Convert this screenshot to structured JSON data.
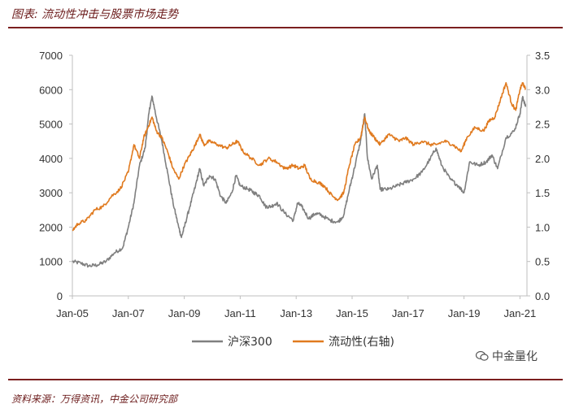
{
  "header": {
    "title": "图表: 流动性冲击与股票市场走势"
  },
  "footer": {
    "source": "资料来源：万得资讯，中金公司研究部"
  },
  "watermark": {
    "text": "中金量化",
    "icon": "wechat-icon"
  },
  "colors": {
    "series_gray": "#7f7f7f",
    "series_orange": "#e07a1f",
    "rule": "#7b1f1f"
  },
  "chart_data": {
    "type": "line",
    "title": "",
    "xlabel": "",
    "ylabel": "",
    "y2label": "",
    "x_ticks": [
      "Jan-05",
      "Jan-07",
      "Jan-09",
      "Jan-11",
      "Jan-13",
      "Jan-15",
      "Jan-17",
      "Jan-19",
      "Jan-21"
    ],
    "x_range": [
      2005.0,
      2021.25
    ],
    "ylim": [
      0,
      7000
    ],
    "y_ticks": [
      "0",
      "1000",
      "2000",
      "3000",
      "4000",
      "5000",
      "6000",
      "7000"
    ],
    "y2lim": [
      0,
      3.5
    ],
    "y2_ticks": [
      "0.0",
      "0.5",
      "1.0",
      "1.5",
      "2.0",
      "2.5",
      "3.0",
      "3.5"
    ],
    "legend": {
      "position": "bottom-center"
    },
    "series": [
      {
        "name": "沪深300",
        "axis": "left",
        "color": "#7f7f7f",
        "points": [
          [
            2005.0,
            1000
          ],
          [
            2005.3,
            950
          ],
          [
            2005.6,
            870
          ],
          [
            2005.9,
            900
          ],
          [
            2006.2,
            1000
          ],
          [
            2006.5,
            1250
          ],
          [
            2006.8,
            1400
          ],
          [
            2007.0,
            2000
          ],
          [
            2007.2,
            2700
          ],
          [
            2007.4,
            3800
          ],
          [
            2007.6,
            4300
          ],
          [
            2007.75,
            5400
          ],
          [
            2007.85,
            5800
          ],
          [
            2008.0,
            5200
          ],
          [
            2008.2,
            4500
          ],
          [
            2008.4,
            3600
          ],
          [
            2008.6,
            2700
          ],
          [
            2008.8,
            2000
          ],
          [
            2008.9,
            1700
          ],
          [
            2009.0,
            2000
          ],
          [
            2009.2,
            2600
          ],
          [
            2009.4,
            3200
          ],
          [
            2009.55,
            3700
          ],
          [
            2009.7,
            3200
          ],
          [
            2009.9,
            3500
          ],
          [
            2010.1,
            3400
          ],
          [
            2010.3,
            2900
          ],
          [
            2010.5,
            2700
          ],
          [
            2010.7,
            3000
          ],
          [
            2010.85,
            3500
          ],
          [
            2011.0,
            3200
          ],
          [
            2011.3,
            3100
          ],
          [
            2011.5,
            3000
          ],
          [
            2011.7,
            2900
          ],
          [
            2011.9,
            2600
          ],
          [
            2012.1,
            2600
          ],
          [
            2012.3,
            2700
          ],
          [
            2012.6,
            2400
          ],
          [
            2012.9,
            2200
          ],
          [
            2013.05,
            2700
          ],
          [
            2013.2,
            2600
          ],
          [
            2013.45,
            2250
          ],
          [
            2013.7,
            2400
          ],
          [
            2013.9,
            2350
          ],
          [
            2014.2,
            2200
          ],
          [
            2014.5,
            2150
          ],
          [
            2014.7,
            2350
          ],
          [
            2014.9,
            3100
          ],
          [
            2015.05,
            3600
          ],
          [
            2015.3,
            4500
          ],
          [
            2015.45,
            5300
          ],
          [
            2015.55,
            4000
          ],
          [
            2015.7,
            3400
          ],
          [
            2015.9,
            3800
          ],
          [
            2016.0,
            3100
          ],
          [
            2016.3,
            3100
          ],
          [
            2016.6,
            3200
          ],
          [
            2016.9,
            3300
          ],
          [
            2017.2,
            3400
          ],
          [
            2017.5,
            3600
          ],
          [
            2017.8,
            4000
          ],
          [
            2018.0,
            4300
          ],
          [
            2018.2,
            3800
          ],
          [
            2018.5,
            3400
          ],
          [
            2018.8,
            3200
          ],
          [
            2019.0,
            3000
          ],
          [
            2019.2,
            3900
          ],
          [
            2019.5,
            3800
          ],
          [
            2019.8,
            3900
          ],
          [
            2020.0,
            4100
          ],
          [
            2020.2,
            3700
          ],
          [
            2020.5,
            4600
          ],
          [
            2020.8,
            4800
          ],
          [
            2021.0,
            5300
          ],
          [
            2021.1,
            5800
          ],
          [
            2021.2,
            5500
          ]
        ]
      },
      {
        "name": "流动性(右轴)",
        "axis": "right",
        "color": "#e07a1f",
        "points": [
          [
            2005.0,
            0.95
          ],
          [
            2005.2,
            1.05
          ],
          [
            2005.5,
            1.1
          ],
          [
            2005.8,
            1.25
          ],
          [
            2006.1,
            1.3
          ],
          [
            2006.4,
            1.45
          ],
          [
            2006.7,
            1.55
          ],
          [
            2007.0,
            1.8
          ],
          [
            2007.2,
            2.2
          ],
          [
            2007.4,
            2.0
          ],
          [
            2007.55,
            2.3
          ],
          [
            2007.7,
            2.45
          ],
          [
            2007.85,
            2.6
          ],
          [
            2008.0,
            2.4
          ],
          [
            2008.2,
            2.3
          ],
          [
            2008.4,
            2.1
          ],
          [
            2008.6,
            1.85
          ],
          [
            2008.8,
            1.7
          ],
          [
            2009.0,
            1.9
          ],
          [
            2009.2,
            2.05
          ],
          [
            2009.4,
            2.2
          ],
          [
            2009.55,
            2.35
          ],
          [
            2009.7,
            2.2
          ],
          [
            2009.9,
            2.25
          ],
          [
            2010.2,
            2.2
          ],
          [
            2010.5,
            2.15
          ],
          [
            2010.7,
            2.2
          ],
          [
            2010.9,
            2.25
          ],
          [
            2011.1,
            2.1
          ],
          [
            2011.4,
            2.0
          ],
          [
            2011.7,
            1.9
          ],
          [
            2012.0,
            2.0
          ],
          [
            2012.3,
            1.95
          ],
          [
            2012.6,
            1.85
          ],
          [
            2012.9,
            1.9
          ],
          [
            2013.1,
            1.85
          ],
          [
            2013.3,
            1.9
          ],
          [
            2013.5,
            1.7
          ],
          [
            2013.8,
            1.65
          ],
          [
            2014.0,
            1.6
          ],
          [
            2014.3,
            1.45
          ],
          [
            2014.5,
            1.4
          ],
          [
            2014.7,
            1.5
          ],
          [
            2014.9,
            1.9
          ],
          [
            2015.1,
            2.2
          ],
          [
            2015.3,
            2.3
          ],
          [
            2015.45,
            2.6
          ],
          [
            2015.6,
            2.4
          ],
          [
            2015.8,
            2.3
          ],
          [
            2016.0,
            2.2
          ],
          [
            2016.3,
            2.35
          ],
          [
            2016.5,
            2.3
          ],
          [
            2016.7,
            2.25
          ],
          [
            2016.9,
            2.3
          ],
          [
            2017.2,
            2.2
          ],
          [
            2017.5,
            2.25
          ],
          [
            2017.8,
            2.2
          ],
          [
            2018.0,
            2.2
          ],
          [
            2018.3,
            2.25
          ],
          [
            2018.6,
            2.2
          ],
          [
            2018.9,
            2.1
          ],
          [
            2019.1,
            2.3
          ],
          [
            2019.4,
            2.45
          ],
          [
            2019.7,
            2.4
          ],
          [
            2019.9,
            2.55
          ],
          [
            2020.1,
            2.6
          ],
          [
            2020.3,
            2.85
          ],
          [
            2020.5,
            3.1
          ],
          [
            2020.7,
            2.8
          ],
          [
            2020.85,
            2.7
          ],
          [
            2021.0,
            3.0
          ],
          [
            2021.1,
            3.1
          ],
          [
            2021.2,
            3.0
          ]
        ]
      }
    ]
  }
}
